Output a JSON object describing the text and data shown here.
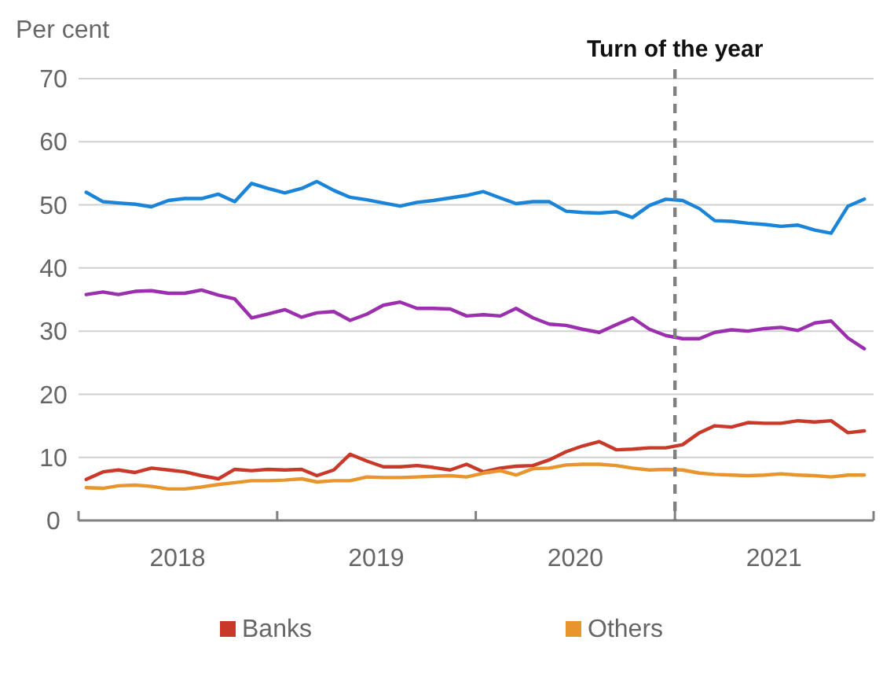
{
  "chart_data": {
    "type": "line",
    "ylabel": "Per cent",
    "x": [
      "2018-01-15",
      "2018-02-15",
      "2018-03-15",
      "2018-04-15",
      "2018-05-15",
      "2018-06-15",
      "2018-07-15",
      "2018-08-15",
      "2018-09-15",
      "2018-10-15",
      "2018-11-15",
      "2018-12-15",
      "2019-01-15",
      "2019-02-15",
      "2019-03-15",
      "2019-04-15",
      "2019-05-15",
      "2019-06-15",
      "2019-07-15",
      "2019-08-15",
      "2019-09-15",
      "2019-10-15",
      "2019-11-15",
      "2019-12-15",
      "2020-01-15",
      "2020-02-15",
      "2020-03-15",
      "2020-04-15",
      "2020-05-15",
      "2020-06-15",
      "2020-07-15",
      "2020-08-15",
      "2020-09-15",
      "2020-10-15",
      "2020-11-15",
      "2020-12-15",
      "2021-01-15",
      "2021-02-15",
      "2021-03-15",
      "2021-04-15",
      "2021-05-15",
      "2021-06-15",
      "2021-07-15",
      "2021-08-15",
      "2021-09-15",
      "2021-10-15",
      "2021-11-15",
      "2021-12-15"
    ],
    "series": [
      {
        "color": "#1a84d8",
        "values": [
          52.0,
          50.5,
          50.3,
          50.1,
          49.7,
          50.7,
          51.0,
          51.0,
          51.7,
          50.5,
          53.4,
          52.6,
          51.9,
          52.6,
          53.7,
          52.3,
          51.2,
          50.8,
          50.3,
          49.8,
          50.4,
          50.7,
          51.1,
          51.5,
          52.1,
          51.1,
          50.2,
          50.5,
          50.5,
          49.0,
          48.8,
          48.7,
          48.9,
          48.0,
          49.9,
          50.9,
          50.7,
          49.4,
          47.5,
          47.4,
          47.1,
          46.9,
          46.6,
          46.8,
          46.0,
          45.5,
          49.8,
          50.9
        ]
      },
      {
        "color": "#9b2fae",
        "values": [
          35.8,
          36.2,
          35.8,
          36.3,
          36.4,
          36.0,
          36.0,
          36.5,
          35.7,
          35.1,
          32.1,
          32.7,
          33.4,
          32.2,
          32.9,
          33.1,
          31.7,
          32.7,
          34.1,
          34.6,
          33.6,
          33.6,
          33.5,
          32.4,
          32.6,
          32.4,
          33.6,
          32.1,
          31.1,
          30.9,
          30.3,
          29.8,
          31.0,
          32.1,
          30.3,
          29.3,
          28.8,
          28.8,
          29.8,
          30.2,
          30.0,
          30.4,
          30.6,
          30.1,
          31.3,
          31.6,
          28.9,
          27.2
        ]
      },
      {
        "name": "Banks",
        "color": "#c8392a",
        "values": [
          6.5,
          7.7,
          8.0,
          7.6,
          8.3,
          8.0,
          7.7,
          7.1,
          6.6,
          8.1,
          7.9,
          8.1,
          8.0,
          8.1,
          7.1,
          8.0,
          10.5,
          9.4,
          8.5,
          8.5,
          8.7,
          8.4,
          8.0,
          8.9,
          7.7,
          8.3,
          8.6,
          8.7,
          9.6,
          10.9,
          11.8,
          12.5,
          11.2,
          11.3,
          11.5,
          11.5,
          12.0,
          13.9,
          15.0,
          14.8,
          15.5,
          15.4,
          15.4,
          15.8,
          15.6,
          15.8,
          13.9,
          14.2
        ]
      },
      {
        "name": "Others",
        "color": "#e8952e",
        "values": [
          5.2,
          5.1,
          5.5,
          5.6,
          5.4,
          5.0,
          5.0,
          5.3,
          5.7,
          6.0,
          6.3,
          6.3,
          6.4,
          6.6,
          6.1,
          6.3,
          6.3,
          6.9,
          6.8,
          6.8,
          6.9,
          7.0,
          7.1,
          6.9,
          7.5,
          7.9,
          7.2,
          8.2,
          8.3,
          8.8,
          8.9,
          8.9,
          8.7,
          8.3,
          8.0,
          8.1,
          8.0,
          7.5,
          7.3,
          7.2,
          7.1,
          7.2,
          7.4,
          7.2,
          7.1,
          6.9,
          7.2,
          7.2
        ]
      }
    ],
    "xlim": [
      "2018-01-01",
      "2022-01-01"
    ],
    "xticks": [
      {
        "value": "2018-01-01",
        "label": null
      },
      {
        "value": "2018-07-02",
        "label": "2018"
      },
      {
        "value": "2019-01-01",
        "label": null
      },
      {
        "value": "2019-07-02",
        "label": "2019"
      },
      {
        "value": "2020-01-01",
        "label": null
      },
      {
        "value": "2020-07-02",
        "label": "2020"
      },
      {
        "value": "2021-01-01",
        "label": null
      },
      {
        "value": "2021-07-02",
        "label": "2021"
      },
      {
        "value": "2022-01-01",
        "label": null
      }
    ],
    "ylim": [
      0,
      70
    ],
    "yticks": [
      0,
      10,
      20,
      30,
      40,
      50,
      60,
      70
    ],
    "grid": "y",
    "legend": "bottom",
    "marker": "none",
    "line_style": "solid",
    "ref_lines": [
      {
        "axis": "x",
        "value": "2021-01-01",
        "label": "Turn of the year",
        "color": "#808080",
        "line_style": "dashed"
      }
    ]
  }
}
